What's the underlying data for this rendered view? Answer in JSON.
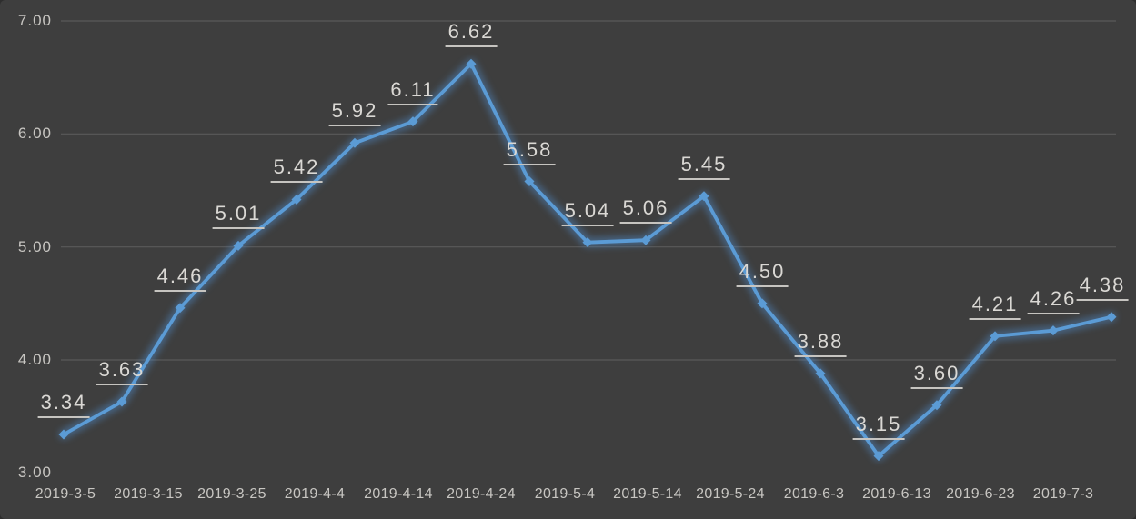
{
  "chart_data": {
    "type": "line",
    "title": "",
    "legend_position": "none",
    "grid": true,
    "ylim": [
      3,
      7
    ],
    "y_tick_labels": [
      "3.00",
      "4.00",
      "5.00",
      "6.00",
      "7.00"
    ],
    "gridline_values": [
      4,
      5,
      6,
      7
    ],
    "x_tick_labels": [
      "2019-3-5",
      "2019-3-15",
      "2019-3-25",
      "2019-4-4",
      "2019-4-14",
      "2019-4-24",
      "2019-5-4",
      "2019-5-14",
      "2019-5-24",
      "2019-6-3",
      "2019-6-13",
      "2019-6-23",
      "2019-7-3"
    ],
    "series": [
      {
        "values": [
          3.34,
          3.63,
          4.46,
          5.01,
          5.42,
          5.92,
          6.11,
          6.62,
          5.58,
          5.04,
          5.06,
          5.45,
          4.5,
          3.88,
          3.15,
          3.6,
          4.21,
          4.26,
          4.38
        ],
        "data_labels": [
          "3.34",
          "3.63",
          "4.46",
          "5.01",
          "5.42",
          "5.92",
          "6.11",
          "6.62",
          "5.58",
          "5.04",
          "5.06",
          "5.45",
          "4.50",
          "3.88",
          "3.15",
          "3.60",
          "4.21",
          "4.26",
          "4.38"
        ]
      }
    ],
    "marker_shape": "diamond",
    "data_labels_underlined": true,
    "colors": {
      "line": "#5B9BD5",
      "marker": "#5B9BD5",
      "glow": "#4F87C2",
      "background": "#3E3E3E",
      "gridline": "#5A5A5A",
      "axis_text": "#C8C6C2",
      "data_label_text": "#DAD8D4",
      "data_label_underline": "#C6C4C0"
    }
  }
}
